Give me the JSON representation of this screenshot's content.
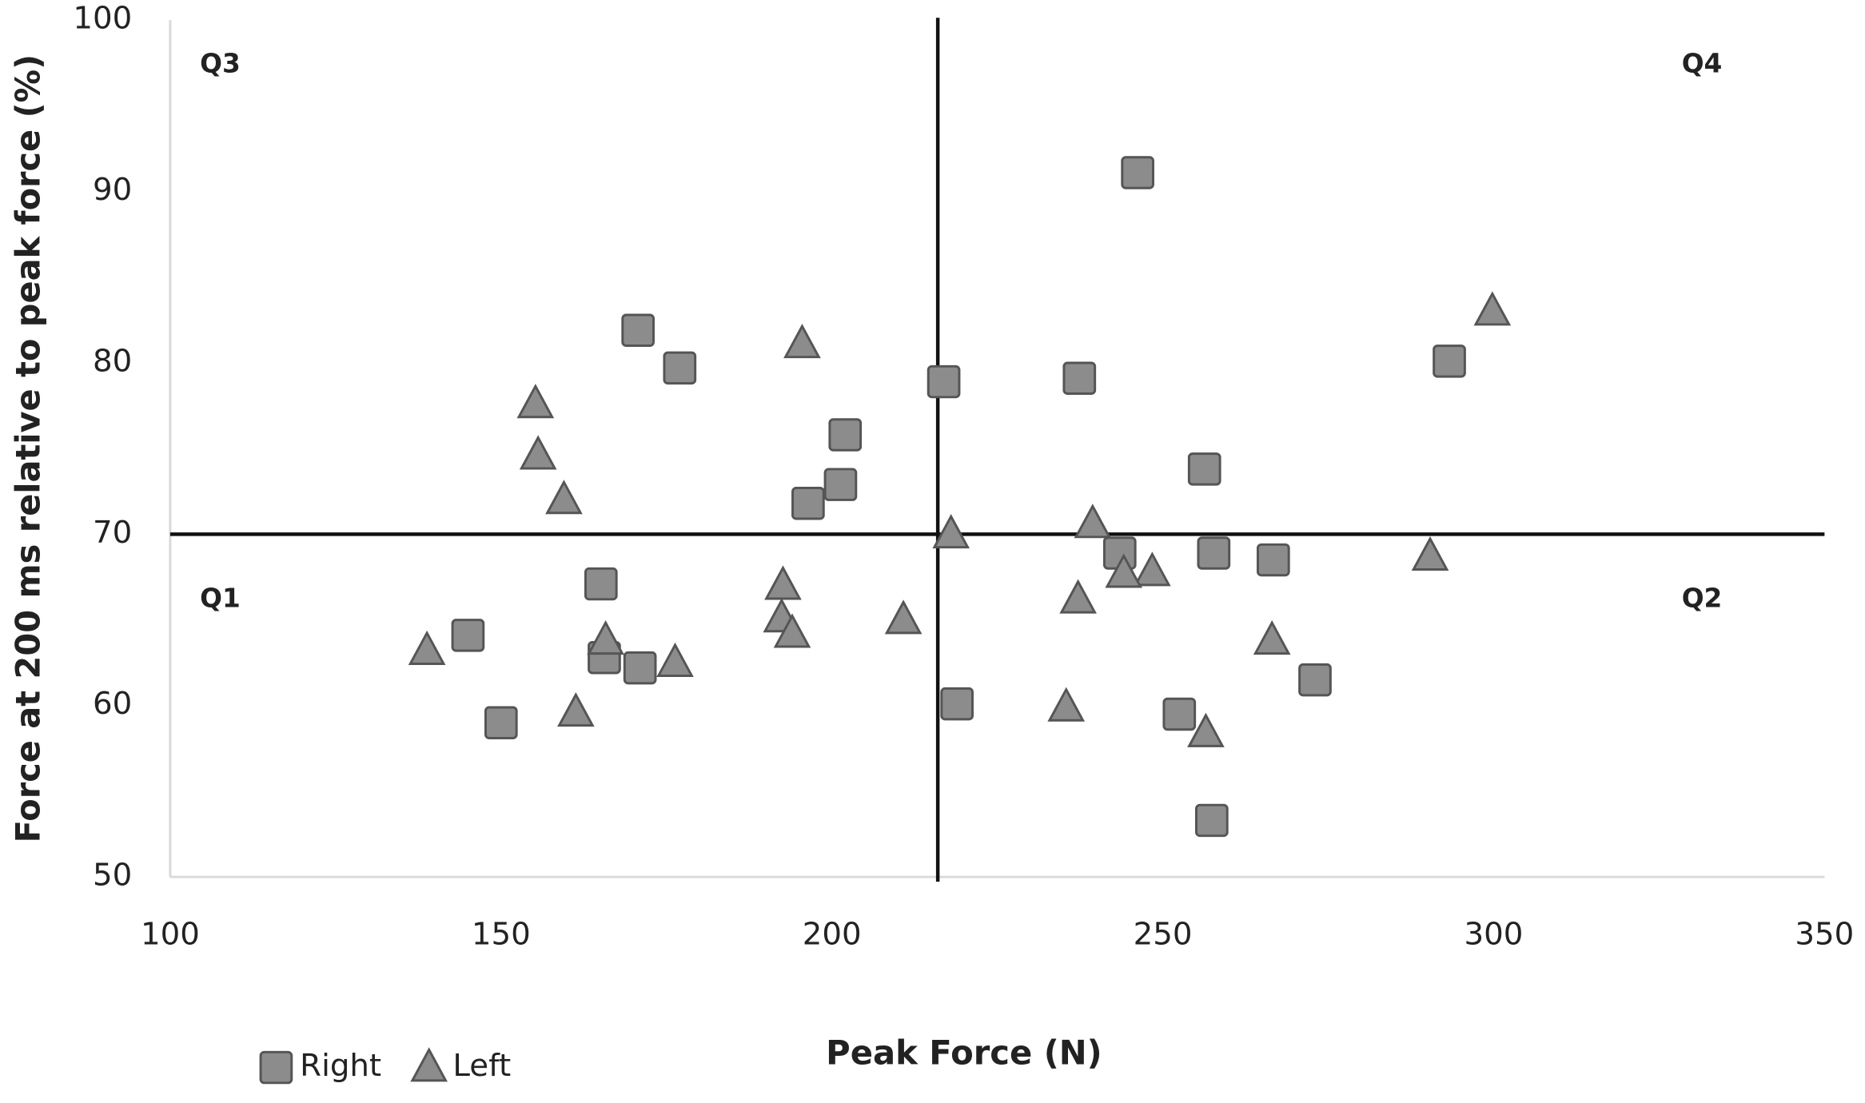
{
  "chart_data": {
    "type": "scatter",
    "x_label": "Peak Force (N)",
    "y_label": "Force at 200 ms relative to peak force (%)",
    "xlim": [
      100,
      350
    ],
    "xticks": [
      100,
      150,
      200,
      250,
      300,
      350
    ],
    "ylim": [
      50,
      100
    ],
    "yticks": [
      50,
      60,
      70,
      80,
      90,
      100
    ],
    "quadrant_lines": {
      "x": 216,
      "y": 70
    },
    "quadrant_labels": [
      "Q1",
      "Q2",
      "Q3",
      "Q4"
    ],
    "series": [
      {
        "name": "Right",
        "marker": "square",
        "color": "#8c8c8c",
        "x": [
          170.7,
          177,
          216.9,
          237.4,
          202,
          196.4,
          201.3,
          246.2,
          293.3,
          256.3,
          243.5,
          257.7,
          266.7,
          165.1,
          145,
          165.6,
          171,
          150,
          218.9,
          252.5,
          273,
          257.4
        ],
        "values": [
          81.9,
          79.7,
          78.9,
          79.1,
          75.8,
          71.8,
          72.9,
          91.1,
          80.1,
          73.8,
          68.9,
          68.9,
          68.5,
          67.1,
          64.1,
          62.8,
          62.2,
          59,
          60.1,
          59.5,
          61.5,
          53.3
        ]
      },
      {
        "name": "Left",
        "marker": "triangle",
        "color": "#8c8c8c",
        "x": [
          155.2,
          155.6,
          159.5,
          195.5,
          299.8,
          218,
          239.4,
          290.4,
          248.4,
          244.1,
          237.2,
          192.6,
          192.4,
          194,
          210.8,
          165.8,
          176.3,
          138.8,
          161.3,
          235.4,
          256.5,
          266.5
        ],
        "values": [
          77.6,
          74.6,
          72.0,
          81.1,
          83.0,
          70.0,
          70.6,
          68.7,
          67.8,
          67.7,
          66.2,
          67,
          65.1,
          64.2,
          65.0,
          63.8,
          62.5,
          63.2,
          59.6,
          59.9,
          58.4,
          63.8
        ]
      }
    ]
  }
}
